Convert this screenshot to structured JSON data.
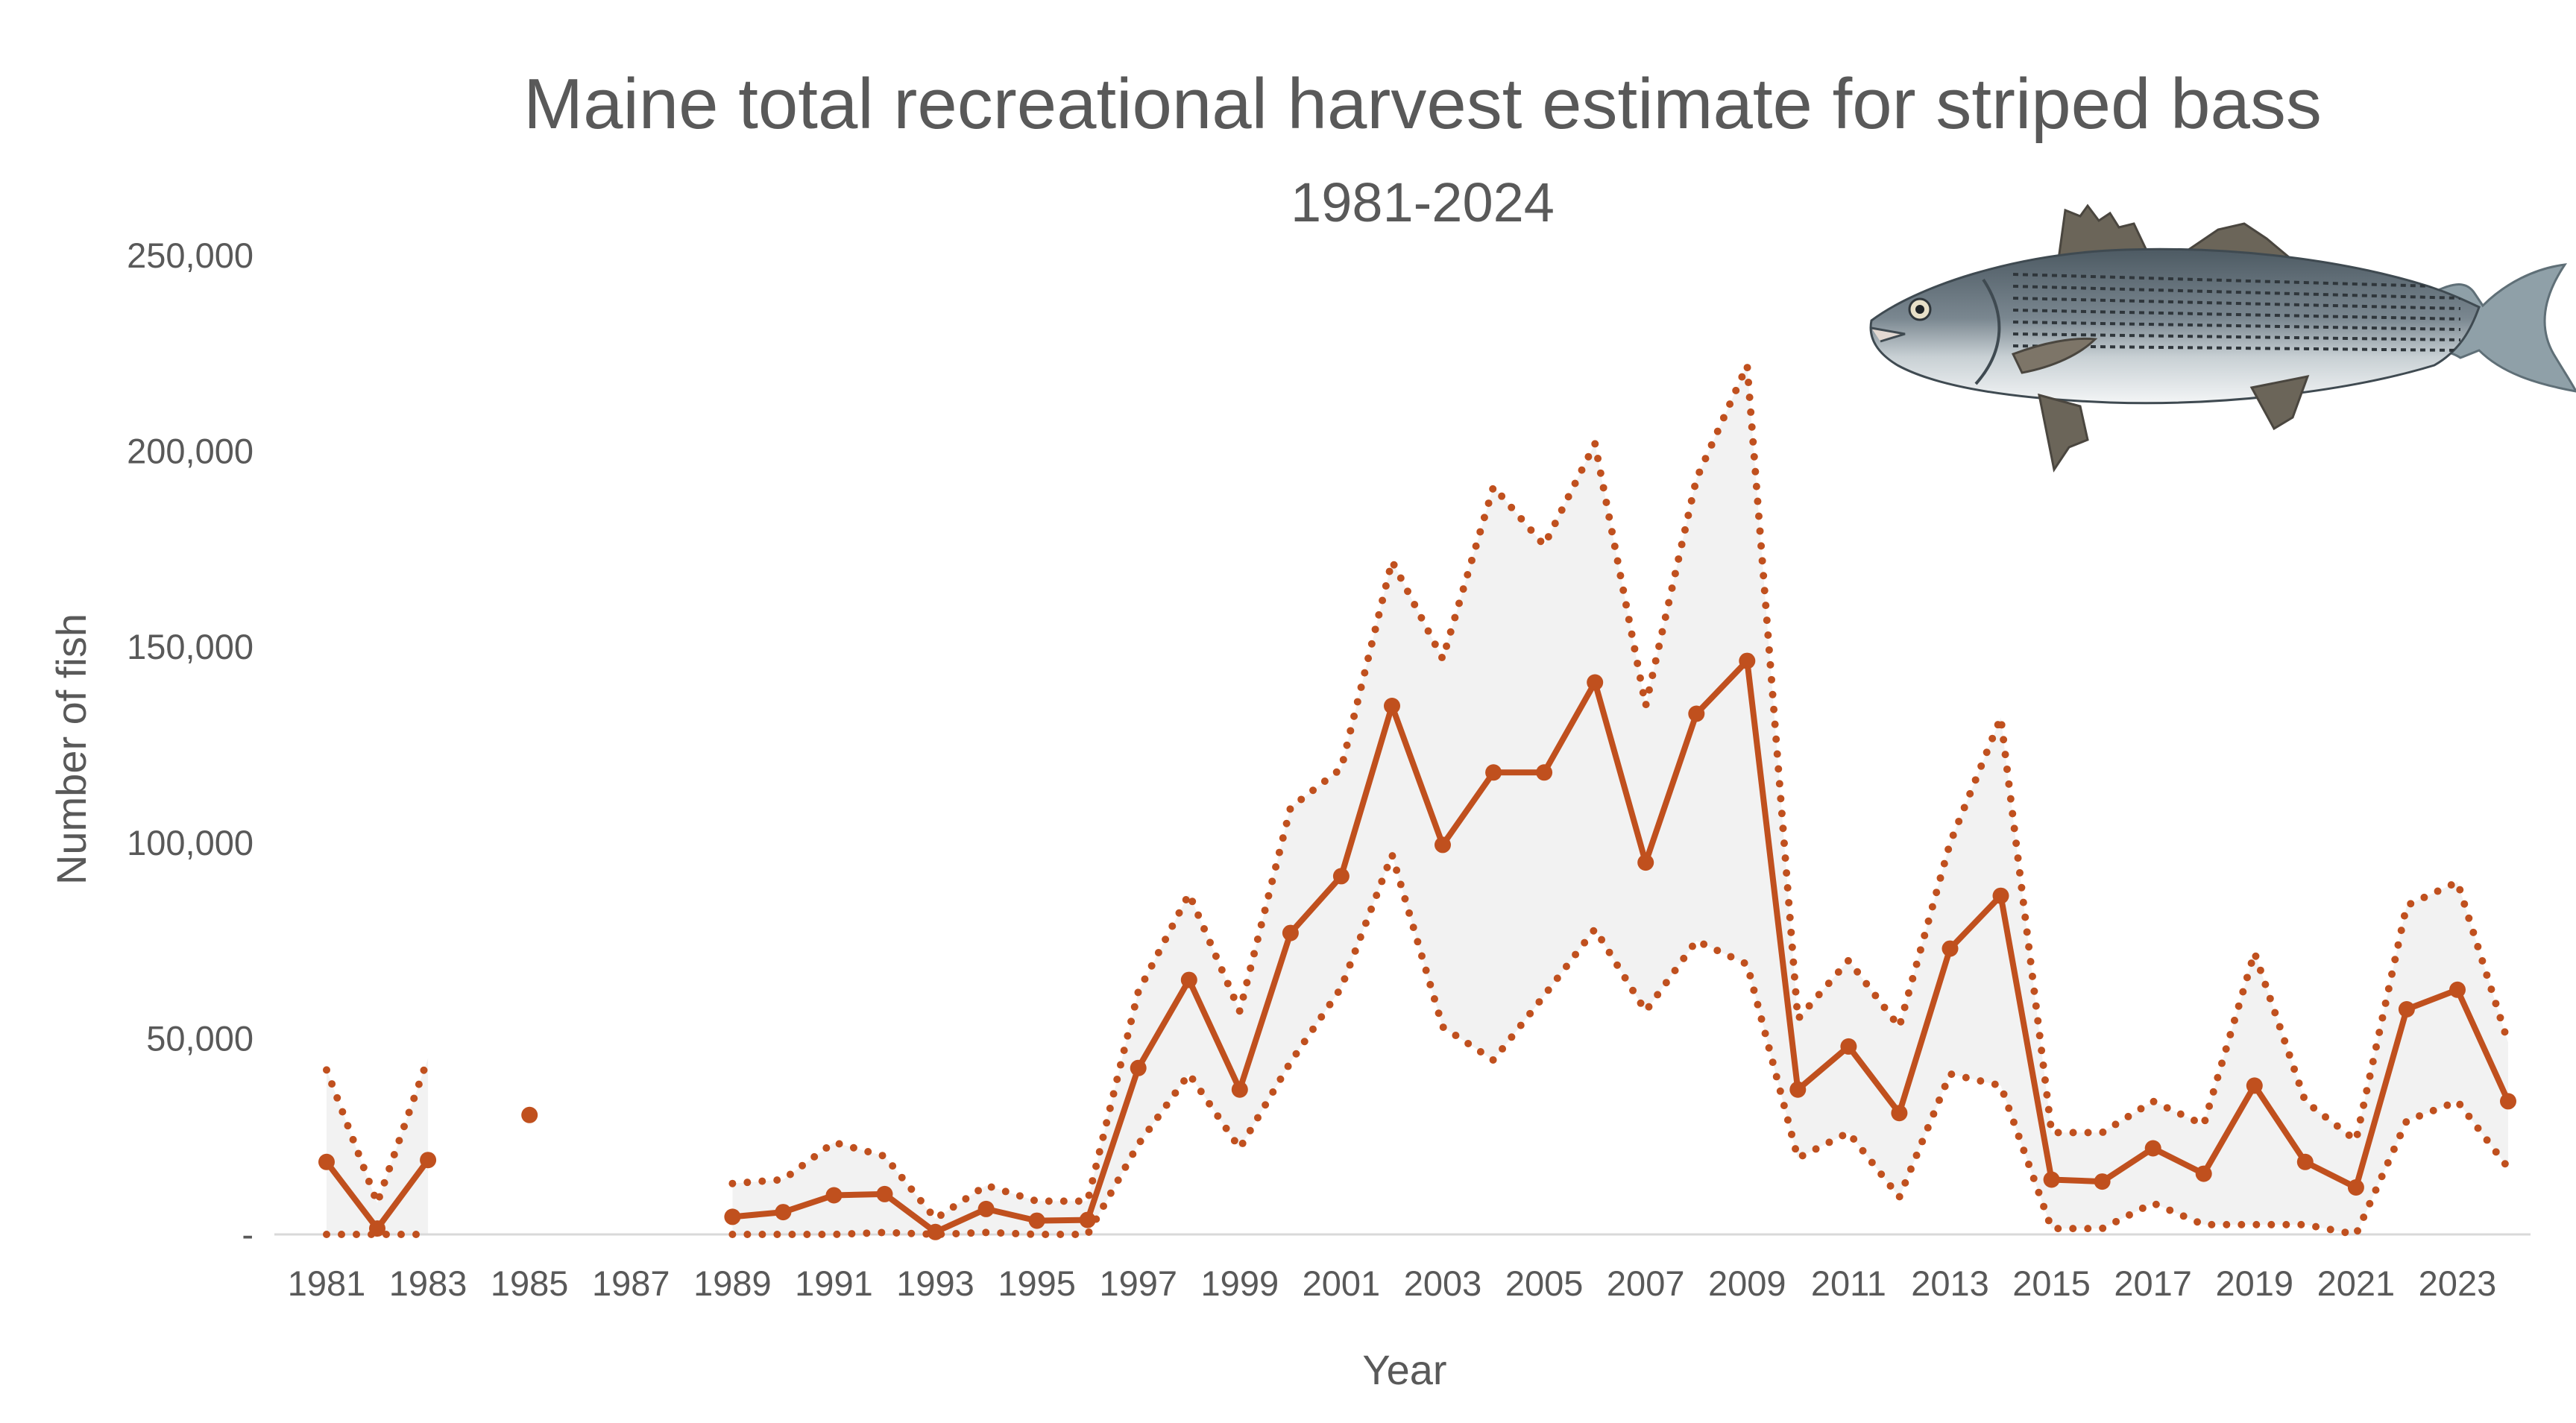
{
  "chart_data": {
    "type": "line",
    "title": "Maine total recreational harvest estimate for striped bass",
    "subtitle": "1981-2024",
    "xlabel": "Year",
    "ylabel": "Number of fish",
    "ylim": [
      0,
      250000
    ],
    "yticks": [
      0,
      50000,
      100000,
      150000,
      200000,
      250000
    ],
    "ytick_labels": [
      "-",
      "50,000",
      "100,000",
      "150,000",
      "200,000",
      "250,000"
    ],
    "xlim": [
      1981,
      2024
    ],
    "xticks": [
      1981,
      1983,
      1985,
      1987,
      1989,
      1991,
      1993,
      1995,
      1997,
      1999,
      2001,
      2003,
      2005,
      2007,
      2009,
      2011,
      2013,
      2015,
      2017,
      2019,
      2021,
      2023
    ],
    "grid": false,
    "legend": "none",
    "colors": {
      "line": "#C0501E",
      "band": "#F2F2F2",
      "axis": "#D9D9D9",
      "text": "#595959"
    },
    "illustration": "striped-bass-fish",
    "series": [
      {
        "role": "estimate",
        "points": [
          [
            1981,
            18500
          ],
          [
            1982,
            1500
          ],
          [
            1983,
            19000
          ],
          [
            1985,
            30500
          ],
          [
            1989,
            4500
          ],
          [
            1990,
            5700
          ],
          [
            1991,
            10000
          ],
          [
            1992,
            10300
          ],
          [
            1993,
            600
          ],
          [
            1994,
            6500
          ],
          [
            1995,
            3500
          ],
          [
            1996,
            3700
          ],
          [
            1997,
            42500
          ],
          [
            1998,
            65000
          ],
          [
            1999,
            37000
          ],
          [
            2000,
            77000
          ],
          [
            2001,
            91500
          ],
          [
            2002,
            135000
          ],
          [
            2003,
            99500
          ],
          [
            2004,
            118000
          ],
          [
            2005,
            118000
          ],
          [
            2006,
            141000
          ],
          [
            2007,
            95000
          ],
          [
            2008,
            133000
          ],
          [
            2009,
            146500
          ],
          [
            2010,
            37000
          ],
          [
            2011,
            48000
          ],
          [
            2012,
            31000
          ],
          [
            2013,
            73000
          ],
          [
            2014,
            86500
          ],
          [
            2015,
            14000
          ],
          [
            2016,
            13500
          ],
          [
            2017,
            22000
          ],
          [
            2018,
            15500
          ],
          [
            2019,
            38000
          ],
          [
            2020,
            18500
          ],
          [
            2021,
            12000
          ],
          [
            2022,
            57500
          ],
          [
            2023,
            62500
          ],
          [
            2024,
            34000
          ]
        ]
      },
      {
        "role": "upper-bound",
        "points": [
          [
            1981,
            42000
          ],
          [
            1982,
            8000
          ],
          [
            1983,
            45000
          ],
          [
            1989,
            13000
          ],
          [
            1990,
            14000
          ],
          [
            1991,
            23500
          ],
          [
            1992,
            20000
          ],
          [
            1993,
            4000
          ],
          [
            1994,
            12500
          ],
          [
            1995,
            8500
          ],
          [
            1996,
            8500
          ],
          [
            1997,
            62000
          ],
          [
            1998,
            87000
          ],
          [
            1999,
            57000
          ],
          [
            2000,
            109000
          ],
          [
            2001,
            119000
          ],
          [
            2002,
            172000
          ],
          [
            2003,
            147000
          ],
          [
            2004,
            191000
          ],
          [
            2005,
            176000
          ],
          [
            2006,
            202000
          ],
          [
            2007,
            135000
          ],
          [
            2008,
            193000
          ],
          [
            2009,
            222000
          ],
          [
            2010,
            55000
          ],
          [
            2011,
            70000
          ],
          [
            2012,
            53000
          ],
          [
            2013,
            100000
          ],
          [
            2014,
            132000
          ],
          [
            2015,
            26000
          ],
          [
            2016,
            26000
          ],
          [
            2017,
            34000
          ],
          [
            2018,
            28000
          ],
          [
            2019,
            72000
          ],
          [
            2020,
            34000
          ],
          [
            2021,
            24000
          ],
          [
            2022,
            84000
          ],
          [
            2023,
            90000
          ],
          [
            2024,
            49000
          ]
        ]
      },
      {
        "role": "lower-bound",
        "points": [
          [
            1981,
            0
          ],
          [
            1982,
            0
          ],
          [
            1983,
            0
          ],
          [
            1989,
            0
          ],
          [
            1990,
            0
          ],
          [
            1991,
            0
          ],
          [
            1992,
            500
          ],
          [
            1993,
            0
          ],
          [
            1994,
            500
          ],
          [
            1995,
            0
          ],
          [
            1996,
            0
          ],
          [
            1997,
            23000
          ],
          [
            1998,
            41000
          ],
          [
            1999,
            22000
          ],
          [
            2000,
            44000
          ],
          [
            2001,
            63000
          ],
          [
            2002,
            97000
          ],
          [
            2003,
            53000
          ],
          [
            2004,
            44500
          ],
          [
            2005,
            61000
          ],
          [
            2006,
            78000
          ],
          [
            2007,
            57000
          ],
          [
            2008,
            75000
          ],
          [
            2009,
            69000
          ],
          [
            2010,
            19500
          ],
          [
            2011,
            26000
          ],
          [
            2012,
            9500
          ],
          [
            2013,
            41000
          ],
          [
            2014,
            38000
          ],
          [
            2015,
            1500
          ],
          [
            2016,
            1500
          ],
          [
            2017,
            8000
          ],
          [
            2018,
            2500
          ],
          [
            2019,
            2500
          ],
          [
            2020,
            2500
          ],
          [
            2021,
            0
          ],
          [
            2022,
            29000
          ],
          [
            2023,
            34000
          ],
          [
            2024,
            17000
          ]
        ]
      }
    ]
  }
}
